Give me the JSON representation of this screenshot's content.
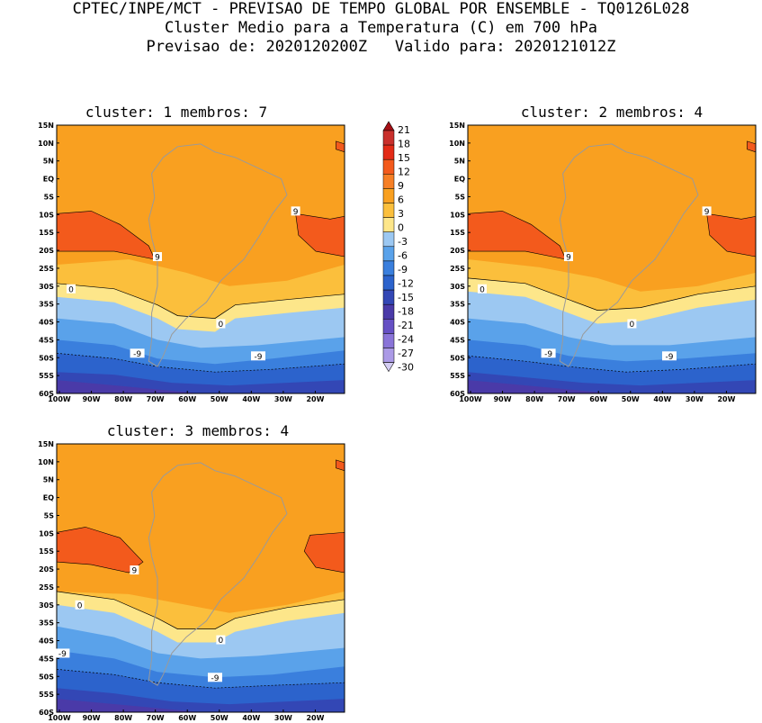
{
  "header": {
    "line1": "CPTEC/INPE/MCT - PREVISAO DE TEMPO GLOBAL POR ENSEMBLE - TQ0126L028",
    "line2": "Cluster Medio para a Temperatura (C) em 700 hPa",
    "line3": "Previsao de: 2020120200Z   Valido para: 2020121012Z"
  },
  "lat_labels": [
    "15N",
    "10N",
    "5N",
    "EQ",
    "5S",
    "10S",
    "15S",
    "20S",
    "25S",
    "30S",
    "35S",
    "40S",
    "45S",
    "50S",
    "55S",
    "60S"
  ],
  "lon_labels": [
    "100W",
    "90W",
    "80W",
    "70W",
    "60W",
    "50W",
    "40W",
    "30W",
    "20W"
  ],
  "colorbar": {
    "labels": [
      "21",
      "18",
      "15",
      "12",
      "9",
      "6",
      "3",
      "0",
      "-3",
      "-6",
      "-9",
      "-12",
      "-15",
      "-18",
      "-21",
      "-24",
      "-27",
      "-30"
    ],
    "colors": [
      "#a50f15",
      "#c9302c",
      "#e32b17",
      "#f35a1c",
      "#f67f25",
      "#f9a020",
      "#fbbf3c",
      "#fde68a",
      "#9cc8f2",
      "#5aa2ea",
      "#3a7fdd",
      "#2c63cc",
      "#3347b5",
      "#4a3aa8",
      "#6650c4",
      "#8a74d8",
      "#ab9ae6",
      "#d4cdf3"
    ]
  },
  "panels": [
    {
      "title": "cluster: 1   membros: 7",
      "labels": {
        "c9a": "9",
        "c9b": "9",
        "c0a": "0",
        "c0b": "0",
        "cm9a": "-9",
        "cm9b": "-9"
      }
    },
    {
      "title": "cluster: 2   membros: 4",
      "labels": {
        "c9a": "9",
        "c9b": "9",
        "c0a": "0",
        "c0b": "0",
        "cm9a": "-9",
        "cm9b": "-9"
      }
    },
    {
      "title": "cluster: 3   membros: 4",
      "labels": {
        "c9a": "9",
        "c0a": "0",
        "c0b": "0",
        "cm9a": "-9",
        "cm9b": "-9"
      }
    }
  ]
}
